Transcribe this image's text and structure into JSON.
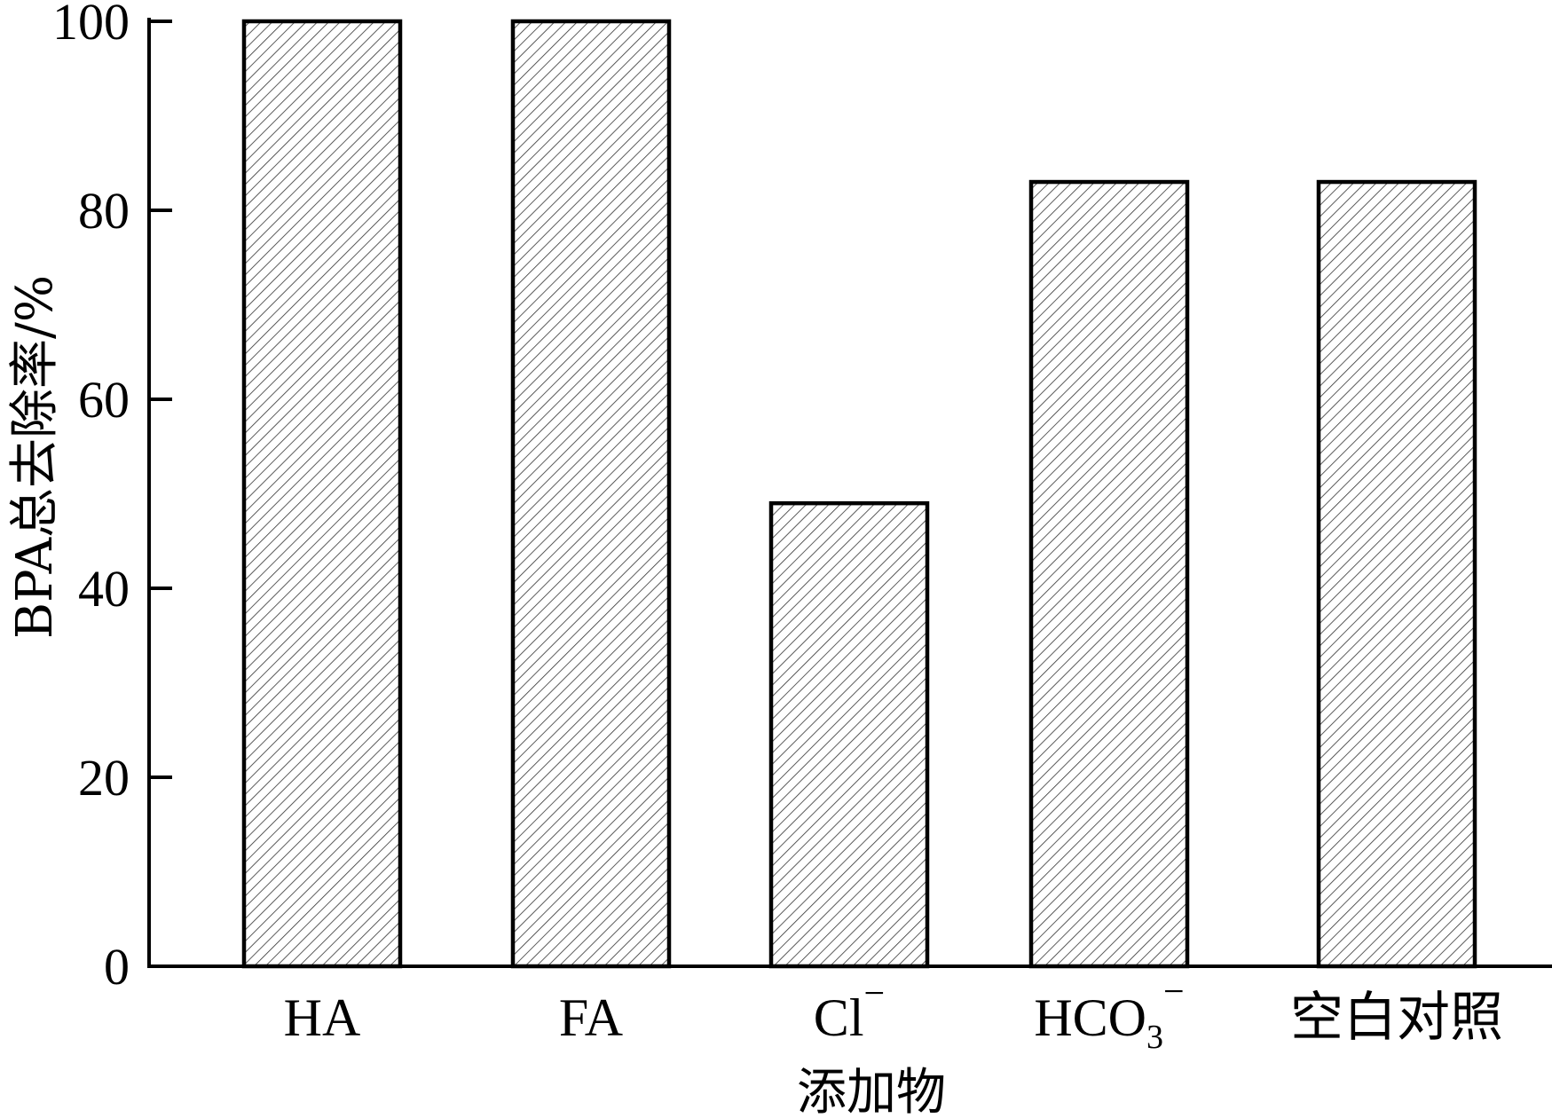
{
  "chart_data": {
    "type": "bar",
    "categories": [
      {
        "base": "HA",
        "sub": "",
        "sup": ""
      },
      {
        "base": "FA",
        "sub": "",
        "sup": ""
      },
      {
        "base": "Cl",
        "sub": "",
        "sup": "−"
      },
      {
        "base": "HCO",
        "sub": "3",
        "sup": "−"
      },
      {
        "base": "空白对照",
        "sub": "",
        "sup": ""
      }
    ],
    "values": [
      100,
      100,
      49,
      83,
      83
    ],
    "xlabel": "添加物",
    "ylabel": "BPA总去除率/%",
    "ylim": [
      0,
      100
    ],
    "yticks": [
      "0",
      "20",
      "40",
      "60",
      "80",
      "100"
    ],
    "grid": false,
    "bar_fill": "hatched",
    "colors": {
      "bar_stroke": "#000000",
      "hatch": "#333333",
      "background": "#ffffff"
    }
  }
}
